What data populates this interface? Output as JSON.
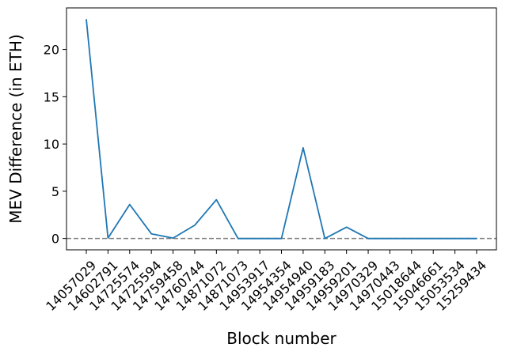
{
  "chart_data": {
    "type": "line",
    "title": "",
    "xlabel": "Block number",
    "ylabel": "MEV Difference (in ETH)",
    "categories": [
      "14057029",
      "14602791",
      "14725574",
      "14725594",
      "14759458",
      "14760744",
      "14871072",
      "14871073",
      "14953917",
      "14954354",
      "14954940",
      "14959183",
      "14959201",
      "14970329",
      "14970443",
      "15018644",
      "15046661",
      "15053534",
      "15259434"
    ],
    "series": [
      {
        "values": [
          23.2,
          0.05,
          3.6,
          0.5,
          0.05,
          1.4,
          4.1,
          0.0,
          0.0,
          0.0,
          9.6,
          0.0,
          1.2,
          0.0,
          0.0,
          0.0,
          0.0,
          0.0,
          0.0
        ],
        "color": "#1f77b4"
      }
    ],
    "reference_line": {
      "y": 0,
      "style": "dashed",
      "color": "#808080"
    },
    "ylim": [
      -1.2,
      24.4
    ],
    "yticks": [
      0,
      5,
      10,
      15,
      20
    ],
    "xtick_rotation": 45,
    "grid": false,
    "legend": "none"
  }
}
